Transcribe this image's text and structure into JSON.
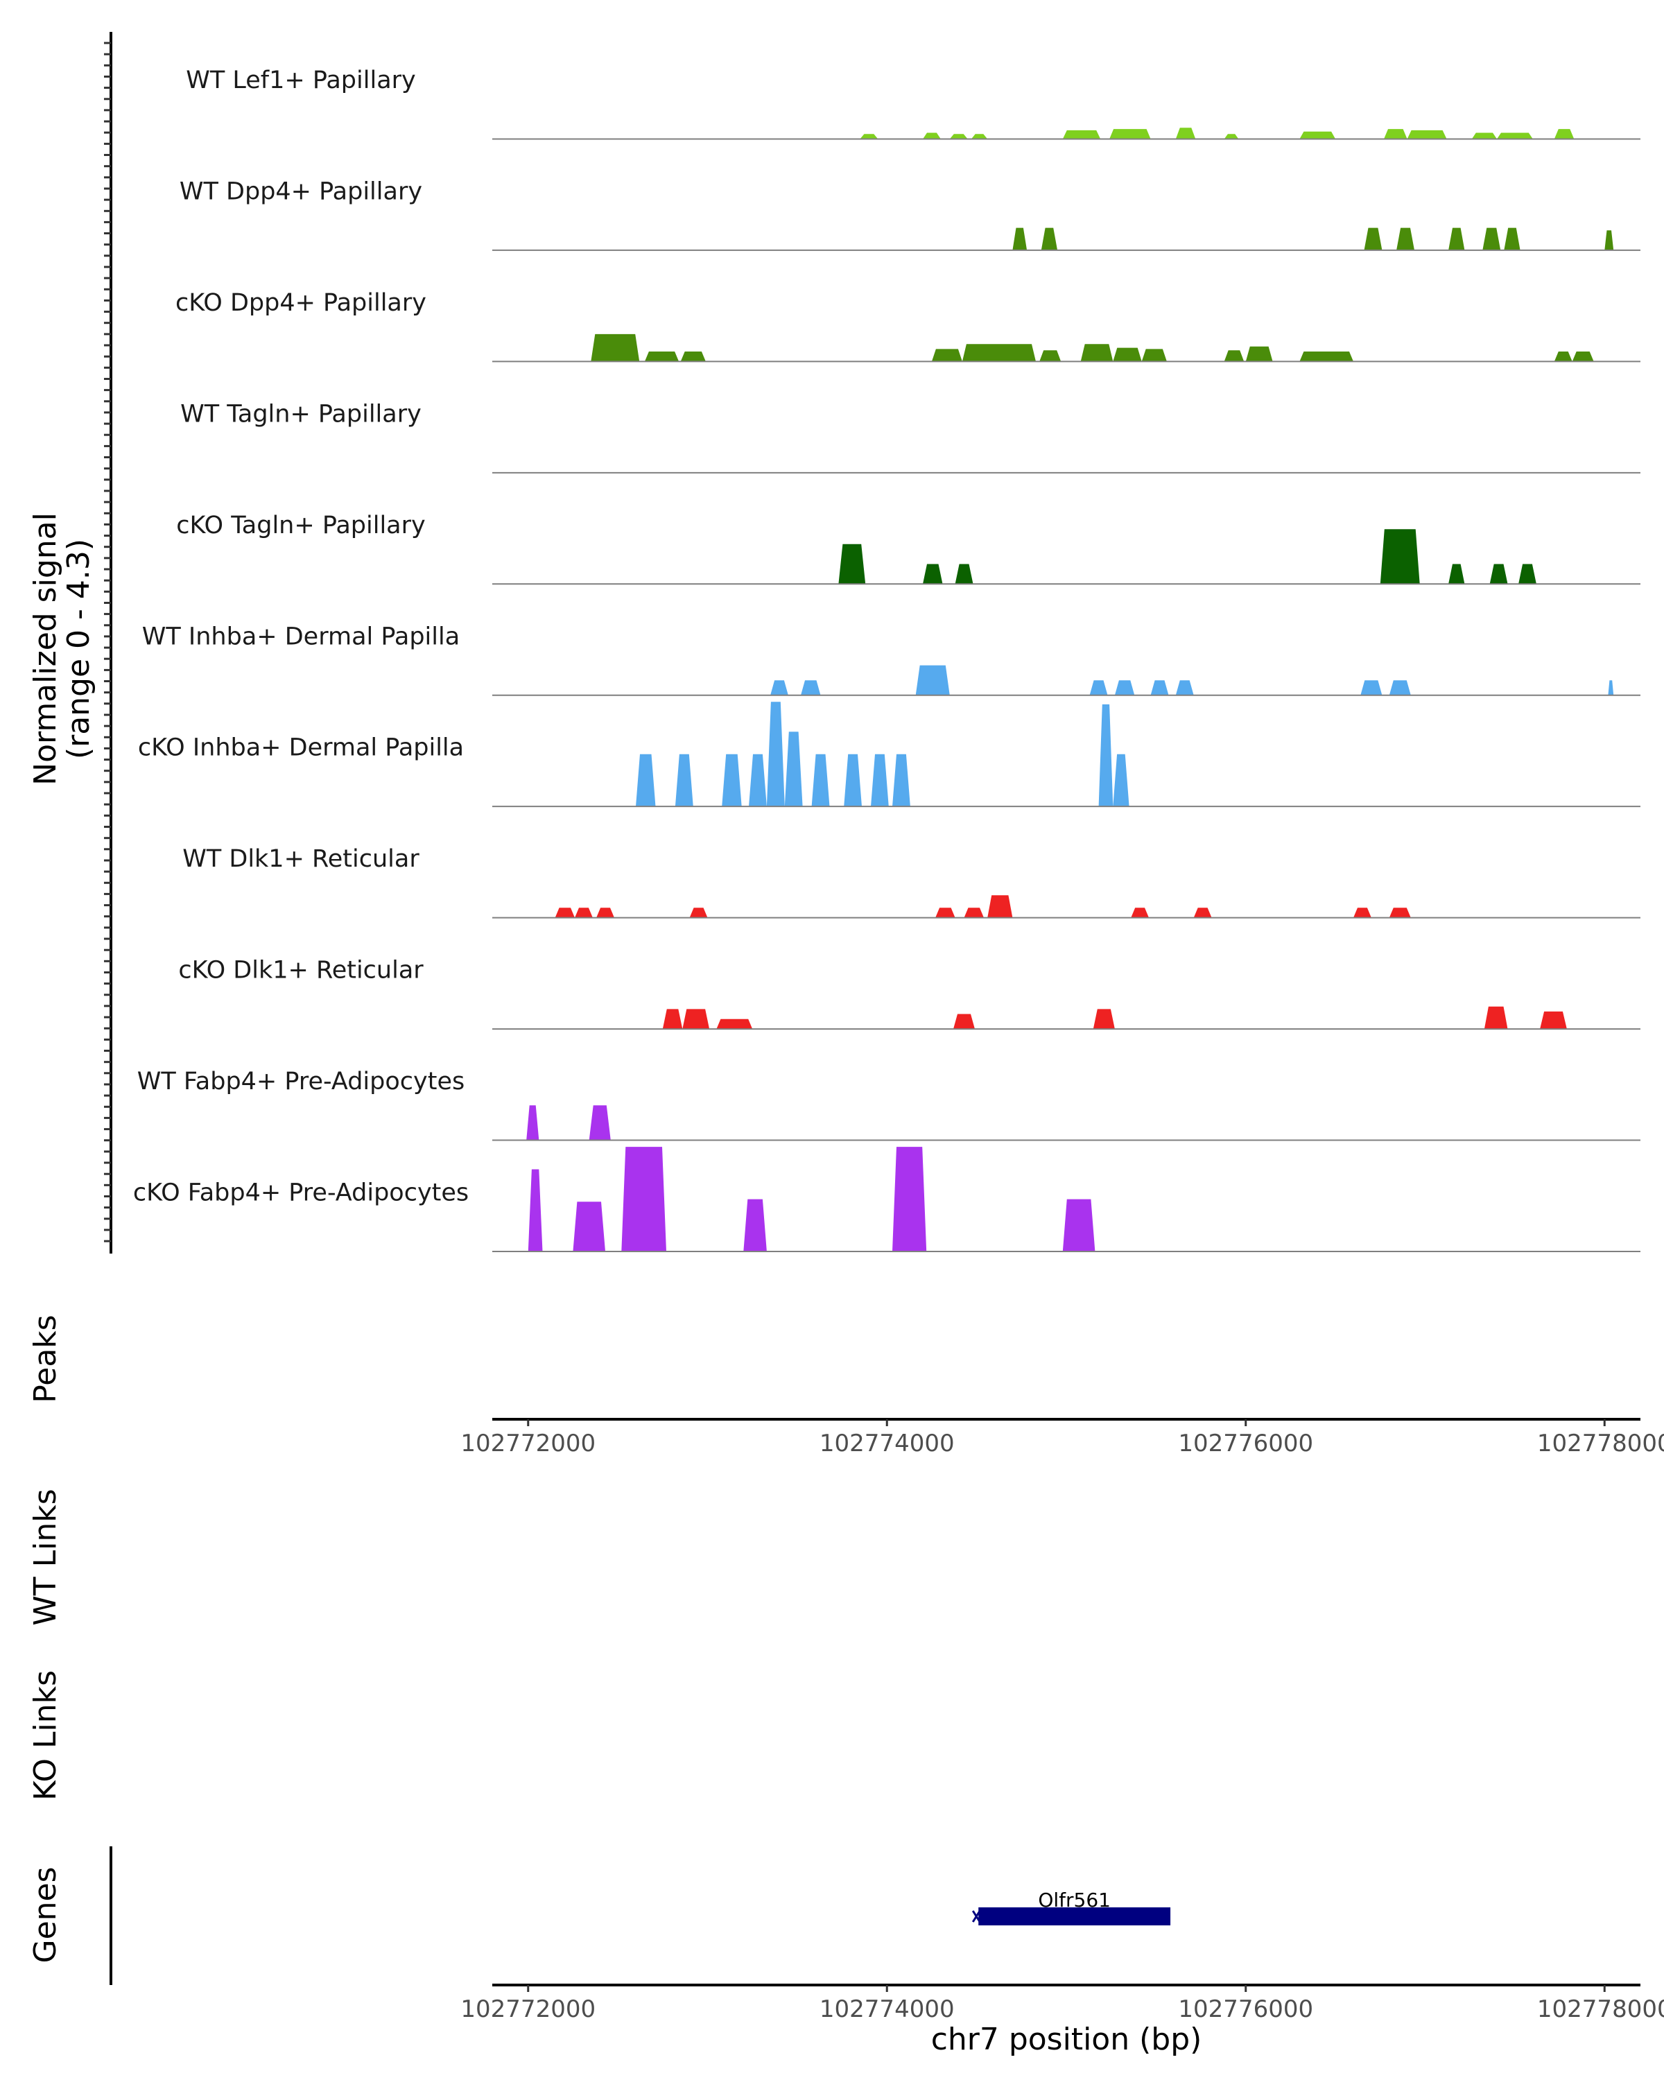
{
  "chart_data": {
    "type": "area",
    "title": "",
    "region": {
      "chrom": "chr7",
      "start": 102771800,
      "end": 102778200
    },
    "ylabel": "Normalized signal",
    "ylabel_range": "(range 0 - 4.3)",
    "ylim": [
      0,
      4.3
    ],
    "xlabel": "chr7 position (bp)",
    "x_ticks": [
      102772000,
      102774000,
      102776000,
      102778000
    ],
    "x_tick_labels": [
      "102772000",
      "102774000",
      "102776000",
      "102778000"
    ],
    "panel_labels": {
      "peaks": "Peaks",
      "wt_links": "WT Links",
      "ko_links": "KO Links",
      "genes": "Genes"
    },
    "series": [
      {
        "name": "WT Lef1+ Papillary",
        "color": "#7fd01f",
        "blocks": [
          [
            102773850,
            102773950,
            0.2
          ],
          [
            102774200,
            102774300,
            0.25
          ],
          [
            102774350,
            102774450,
            0.2
          ],
          [
            102774470,
            102774560,
            0.2
          ],
          [
            102774980,
            102775190,
            0.35
          ],
          [
            102775240,
            102775470,
            0.4
          ],
          [
            102775610,
            102775720,
            0.45
          ],
          [
            102775880,
            102775960,
            0.2
          ],
          [
            102776300,
            102776500,
            0.3
          ],
          [
            102776770,
            102776900,
            0.4
          ],
          [
            102776900,
            102777120,
            0.35
          ],
          [
            102777260,
            102777400,
            0.25
          ],
          [
            102777400,
            102777600,
            0.25
          ],
          [
            102777720,
            102777830,
            0.4
          ]
        ]
      },
      {
        "name": "WT Dpp4+ Papillary",
        "color": "#4a8c0a",
        "blocks": [
          [
            102774700,
            102774780,
            0.9
          ],
          [
            102774860,
            102774950,
            0.9
          ],
          [
            102776660,
            102776760,
            0.9
          ],
          [
            102776840,
            102776940,
            0.9
          ],
          [
            102777130,
            102777220,
            0.9
          ],
          [
            102777320,
            102777420,
            0.9
          ],
          [
            102777440,
            102777530,
            0.9
          ],
          [
            102778000,
            102778050,
            0.8
          ]
        ]
      },
      {
        "name": "cKO Dpp4+ Papillary",
        "color": "#4a8c0a",
        "blocks": [
          [
            102772350,
            102772620,
            1.1
          ],
          [
            102772650,
            102772840,
            0.4
          ],
          [
            102772850,
            102772990,
            0.4
          ],
          [
            102774250,
            102774420,
            0.5
          ],
          [
            102774420,
            102774830,
            0.7
          ],
          [
            102774850,
            102774970,
            0.45
          ],
          [
            102775080,
            102775260,
            0.7
          ],
          [
            102775260,
            102775420,
            0.55
          ],
          [
            102775420,
            102775560,
            0.5
          ],
          [
            102775880,
            102775990,
            0.45
          ],
          [
            102776000,
            102776150,
            0.6
          ],
          [
            102776300,
            102776600,
            0.4
          ],
          [
            102777720,
            102777820,
            0.4
          ],
          [
            102777820,
            102777940,
            0.4
          ]
        ]
      },
      {
        "name": "WT Tagln+ Papillary",
        "color": "#1e6b10",
        "blocks": []
      },
      {
        "name": "cKO Tagln+ Papillary",
        "color": "#0b6100",
        "blocks": [
          [
            102773730,
            102773880,
            1.6
          ],
          [
            102774200,
            102774310,
            0.8
          ],
          [
            102774380,
            102774480,
            0.8
          ],
          [
            102776750,
            102776970,
            2.2
          ],
          [
            102777130,
            102777220,
            0.8
          ],
          [
            102777360,
            102777460,
            0.8
          ],
          [
            102777520,
            102777620,
            0.8
          ]
        ]
      },
      {
        "name": "WT Inhba+ Dermal Papilla",
        "color": "#56aaee",
        "blocks": [
          [
            102773350,
            102773450,
            0.6
          ],
          [
            102773520,
            102773630,
            0.6
          ],
          [
            102774160,
            102774350,
            1.2
          ],
          [
            102775130,
            102775230,
            0.6
          ],
          [
            102775270,
            102775380,
            0.6
          ],
          [
            102775470,
            102775570,
            0.6
          ],
          [
            102775610,
            102775710,
            0.6
          ],
          [
            102776640,
            102776760,
            0.6
          ],
          [
            102776800,
            102776920,
            0.6
          ],
          [
            102778020,
            102778050,
            0.6
          ]
        ]
      },
      {
        "name": "cKO Inhba+ Dermal Papilla",
        "color": "#56aaee",
        "blocks": [
          [
            102772600,
            102772710,
            2.1
          ],
          [
            102772820,
            102772920,
            2.1
          ],
          [
            102773080,
            102773190,
            2.1
          ],
          [
            102773230,
            102773330,
            2.1
          ],
          [
            102773330,
            102773430,
            4.2
          ],
          [
            102773430,
            102773530,
            3.0
          ],
          [
            102773580,
            102773680,
            2.1
          ],
          [
            102773760,
            102773860,
            2.1
          ],
          [
            102773910,
            102774010,
            2.1
          ],
          [
            102774030,
            102774130,
            2.1
          ],
          [
            102775180,
            102775260,
            4.1
          ],
          [
            102775260,
            102775350,
            2.1
          ]
        ]
      },
      {
        "name": "WT Dlk1+ Reticular",
        "color": "#ee2222",
        "blocks": [
          [
            102772150,
            102772260,
            0.4
          ],
          [
            102772260,
            102772360,
            0.4
          ],
          [
            102772380,
            102772480,
            0.4
          ],
          [
            102772900,
            102773000,
            0.4
          ],
          [
            102774270,
            102774380,
            0.4
          ],
          [
            102774430,
            102774540,
            0.4
          ],
          [
            102774560,
            102774700,
            0.9
          ],
          [
            102775360,
            102775460,
            0.4
          ],
          [
            102775710,
            102775810,
            0.4
          ],
          [
            102776600,
            102776700,
            0.4
          ],
          [
            102776800,
            102776920,
            0.4
          ]
        ]
      },
      {
        "name": "cKO Dlk1+ Reticular",
        "color": "#ee2222",
        "blocks": [
          [
            102772750,
            102772860,
            0.8
          ],
          [
            102772860,
            102773010,
            0.8
          ],
          [
            102773050,
            102773250,
            0.4
          ],
          [
            102774370,
            102774490,
            0.6
          ],
          [
            102775150,
            102775270,
            0.8
          ],
          [
            102777330,
            102777460,
            0.9
          ],
          [
            102777640,
            102777790,
            0.7
          ]
        ]
      },
      {
        "name": "WT Fabp4+ Pre-Adipocytes",
        "color": "#a933ee",
        "blocks": [
          [
            102771990,
            102772060,
            1.4
          ],
          [
            102772340,
            102772460,
            1.4
          ]
        ]
      },
      {
        "name": "cKO Fabp4+ Pre-Adipocytes",
        "color": "#a933ee",
        "blocks": [
          [
            102772000,
            102772080,
            3.3
          ],
          [
            102772250,
            102772430,
            2.0
          ],
          [
            102772520,
            102772770,
            4.2
          ],
          [
            102773200,
            102773330,
            2.1
          ],
          [
            102774030,
            102774220,
            4.2
          ],
          [
            102774980,
            102775160,
            2.1
          ]
        ]
      }
    ],
    "genes": [
      {
        "name": "Olfr561",
        "start": 102774510,
        "end": 102775580,
        "strand": "-"
      }
    ]
  }
}
